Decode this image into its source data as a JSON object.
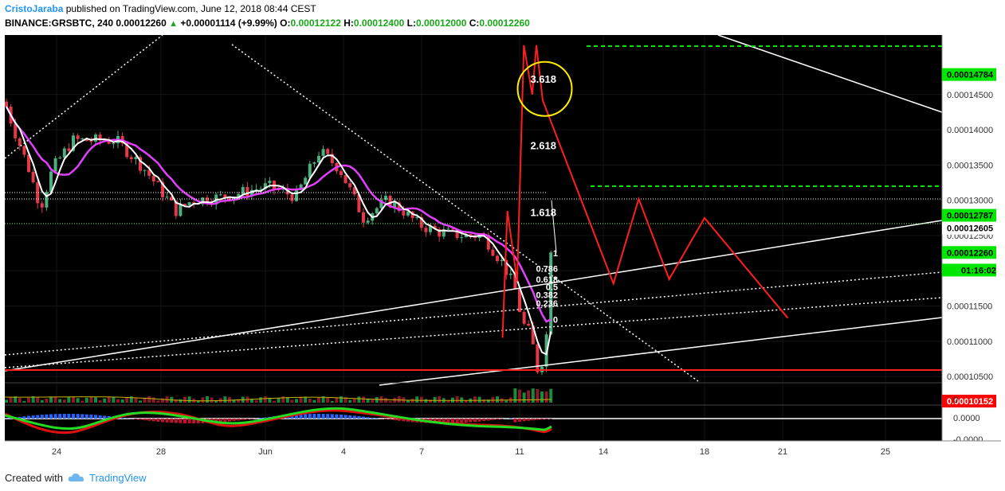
{
  "header": {
    "author": "CristoJaraba",
    "published_text": "published on TradingView.com, June 12, 2018 08:44 CEST",
    "symbol": "BINANCE:GRSBTC, 240",
    "last": "0.00012260",
    "change": "+0.00001114 (+9.99%)",
    "o_label": "O:",
    "o_value": "0.00012122",
    "h_label": "H:",
    "h_value": "0.00012400",
    "l_label": "L:",
    "l_value": "0.00012000",
    "c_label": "C:",
    "c_value": "0.00012260"
  },
  "footer": {
    "created_with": "Created with",
    "brand": "TradingView"
  },
  "chart_data": {
    "type": "candlestick",
    "x_tick_labels": [
      "24",
      "28",
      "Jun",
      "4",
      "7",
      "11",
      "14",
      "18",
      "21",
      "25"
    ],
    "y_tick_labels": [
      "0.00014500",
      "0.00014000",
      "0.00013500",
      "0.00013000",
      "0.00012500",
      "0.00012000",
      "0.00011500",
      "0.00011000",
      "0.00010500"
    ],
    "ylim": [
      0.0001005,
      0.0001515
    ],
    "price_badges": [
      {
        "label": "0.00014784",
        "value": 0.00014784,
        "color": "#00e600"
      },
      {
        "label": "0.00012787",
        "value": 0.00012787,
        "color": "#00e600"
      },
      {
        "label": "0.00012605",
        "value": 0.00012605,
        "color": "#ffffff"
      },
      {
        "label": "0.00012260",
        "value": 0.0001226,
        "color": "#00e600"
      },
      {
        "label": "01:16:02",
        "value": 0.0001201,
        "color": "#00e600"
      },
      {
        "label": "0.00010152",
        "value": 0.00010152,
        "color": "#ff0000"
      }
    ],
    "fib_labels": [
      {
        "label": "3.618",
        "value": 0.0001471
      },
      {
        "label": "2.618",
        "value": 0.0001377
      },
      {
        "label": "1.618",
        "value": 0.0001282
      },
      {
        "label": "1",
        "value": 0.0001225
      },
      {
        "label": "0.786",
        "value": 0.0001203
      },
      {
        "label": "0.618",
        "value": 0.0001188
      },
      {
        "label": "0.5",
        "value": 0.0001177
      },
      {
        "label": "0.382",
        "value": 0.0001166
      },
      {
        "label": "0.236",
        "value": 0.0001154
      },
      {
        "label": "0",
        "value": 0.0001131
      }
    ],
    "projection_path": [
      [
        12.3,
        0.0001105
      ],
      [
        12.5,
        0.0001285
      ],
      [
        12.9,
        0.0001185
      ],
      [
        13.2,
        0.000152
      ],
      [
        13.6,
        0.000145
      ],
      [
        13.8,
        0.000152
      ],
      [
        14.1,
        0.0001442
      ],
      [
        17.4,
        0.0001182
      ],
      [
        18.4,
        0.0001302
      ],
      [
        19.6,
        0.0001188
      ],
      [
        21.0,
        0.0001275
      ],
      [
        25.2,
        0.0001133
      ]
    ],
    "highlight_circle": {
      "x": 14.2,
      "y": 0.0001458
    },
    "lower_panel_ticks": [
      "0",
      "0.0000",
      "-0.0000"
    ]
  }
}
